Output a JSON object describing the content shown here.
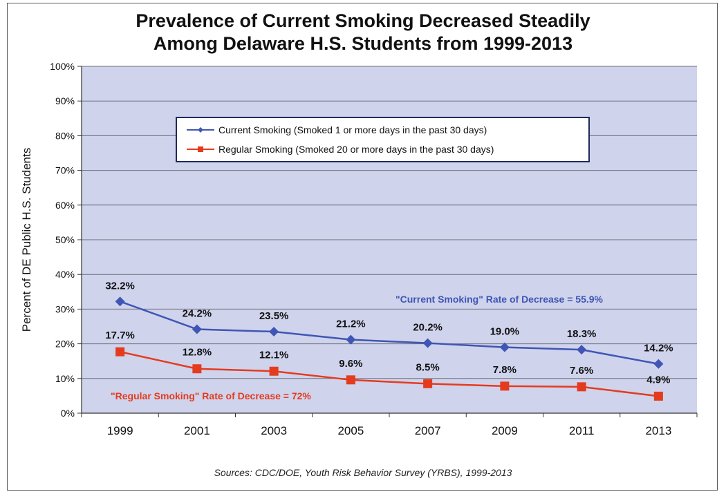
{
  "chart_data": {
    "type": "line",
    "title_lines": [
      "Prevalence of Current Smoking Decreased Steadily",
      "Among Delaware H.S. Students from 1999-2013"
    ],
    "ylabel": "Percent of DE Public H.S. Students",
    "xlabel": "",
    "categories": [
      "1999",
      "2001",
      "2003",
      "2005",
      "2007",
      "2009",
      "2011",
      "2013"
    ],
    "y_ticks": [
      "0%",
      "10%",
      "20%",
      "30%",
      "40%",
      "50%",
      "60%",
      "70%",
      "80%",
      "90%",
      "100%"
    ],
    "ylim": [
      0,
      100
    ],
    "grid": true,
    "legend_position": "top-center",
    "series": [
      {
        "name": "Current Smoking (Smoked 1 or more days in the past 30 days)",
        "color": "#3f56b5",
        "marker": "diamond",
        "values": [
          32.2,
          24.2,
          23.5,
          21.2,
          20.2,
          19.0,
          18.3,
          14.2
        ],
        "labels": [
          "32.2%",
          "24.2%",
          "23.5%",
          "21.2%",
          "20.2%",
          "19.0%",
          "18.3%",
          "14.2%"
        ]
      },
      {
        "name": "Regular Smoking (Smoked 20 or more days in the past 30 days)",
        "color": "#e43b1e",
        "marker": "square",
        "values": [
          17.7,
          12.8,
          12.1,
          9.6,
          8.5,
          7.8,
          7.6,
          4.9
        ],
        "labels": [
          "17.7%",
          "12.8%",
          "12.1%",
          "9.6%",
          "8.5%",
          "7.8%",
          "7.6%",
          "4.9%"
        ]
      }
    ],
    "annotations": [
      {
        "text": "\"Current Smoking\" Rate of Decrease = 55.9%",
        "color": "#3f56b5"
      },
      {
        "text": "\"Regular Smoking\" Rate of Decrease = 72%",
        "color": "#e43b1e"
      }
    ],
    "plot_background": "#cfd3ec"
  },
  "source": "Sources:  CDC/DOE, Youth Risk Behavior Survey (YRBS), 1999-2013"
}
